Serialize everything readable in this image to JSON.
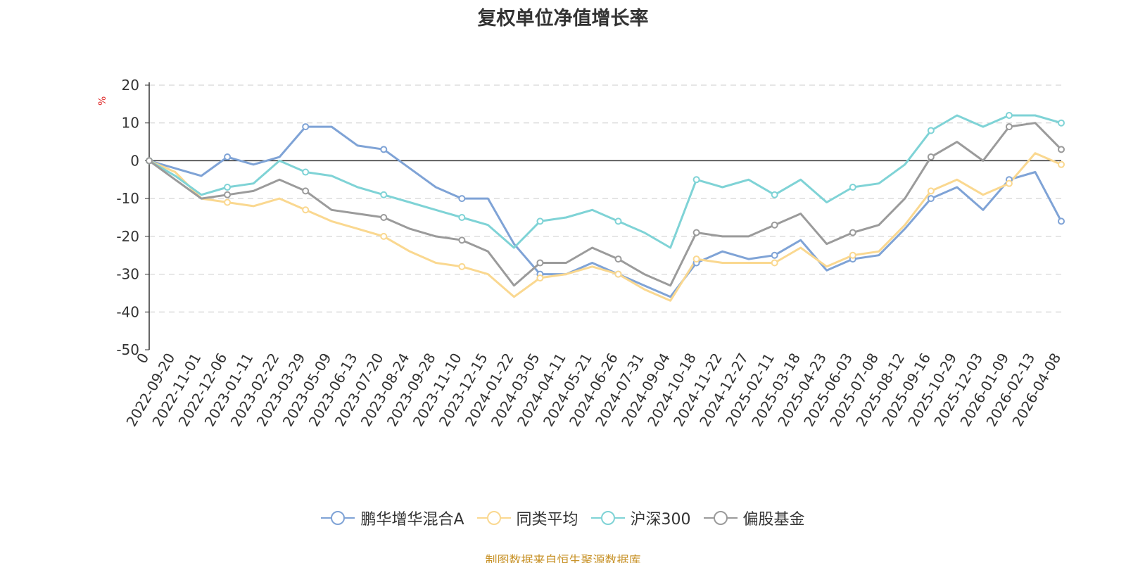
{
  "chart_data": {
    "type": "line",
    "title": "复权单位净值增长率",
    "ylabel": "%",
    "ylim": [
      -50,
      20
    ],
    "yticks": [
      20,
      10,
      0,
      -10,
      -20,
      -30,
      -40,
      -50
    ],
    "grid": true,
    "legend_position": "bottom",
    "x": [
      "0",
      "2022-09-20",
      "2022-11-01",
      "2022-12-06",
      "2023-01-11",
      "2023-02-22",
      "2023-03-29",
      "2023-05-09",
      "2023-06-13",
      "2023-07-20",
      "2023-08-24",
      "2023-09-28",
      "2023-11-10",
      "2023-12-15",
      "2024-01-22",
      "2024-03-05",
      "2024-04-11",
      "2024-05-21",
      "2024-06-26",
      "2024-07-31",
      "2024-09-04",
      "2024-10-18",
      "2024-11-22",
      "2024-12-27",
      "2025-02-11",
      "2025-03-18",
      "2025-04-23",
      "2025-06-03",
      "2025-07-08",
      "2025-08-12",
      "2025-09-16",
      "2025-10-29",
      "2025-12-03",
      "2026-01-09",
      "2026-02-13",
      "2026-04-08"
    ],
    "series": [
      {
        "name": "鹏华增华混合A",
        "color": "#7fa3d6",
        "values": [
          0,
          -2,
          -4,
          1,
          -1,
          1,
          9,
          9,
          4,
          3,
          -2,
          -7,
          -10,
          -10,
          -22,
          -30,
          -30,
          -27,
          -30,
          -33,
          -36,
          -27,
          -24,
          -26,
          -25,
          -21,
          -29,
          -26,
          -25,
          -18,
          -10,
          -7,
          -13,
          -5,
          -3,
          -16
        ]
      },
      {
        "name": "同类平均",
        "color": "#fad890",
        "values": [
          0,
          -3,
          -10,
          -11,
          -12,
          -10,
          -13,
          -16,
          -18,
          -20,
          -24,
          -27,
          -28,
          -30,
          -36,
          -31,
          -30,
          -28,
          -30,
          -34,
          -37,
          -26,
          -27,
          -27,
          -27,
          -23,
          -28,
          -25,
          -24,
          -17,
          -8,
          -5,
          -9,
          -6,
          2,
          -1
        ]
      },
      {
        "name": "沪深300",
        "color": "#7fd3d6",
        "values": [
          0,
          -4,
          -9,
          -7,
          -6,
          0,
          -3,
          -4,
          -7,
          -9,
          -11,
          -13,
          -15,
          -17,
          -23,
          -16,
          -15,
          -13,
          -16,
          -19,
          -23,
          -5,
          -7,
          -5,
          -9,
          -5,
          -11,
          -7,
          -6,
          -1,
          8,
          12,
          9,
          12,
          12,
          10
        ]
      },
      {
        "name": "偏股基金",
        "color": "#9b9b9b",
        "values": [
          0,
          -5,
          -10,
          -9,
          -8,
          -5,
          -8,
          -13,
          -14,
          -15,
          -18,
          -20,
          -21,
          -24,
          -33,
          -27,
          -27,
          -23,
          -26,
          -30,
          -33,
          -19,
          -20,
          -20,
          -17,
          -14,
          -22,
          -19,
          -17,
          -10,
          1,
          5,
          0,
          9,
          10,
          3
        ]
      }
    ]
  },
  "source": "制图数据来自恒生聚源数据库"
}
